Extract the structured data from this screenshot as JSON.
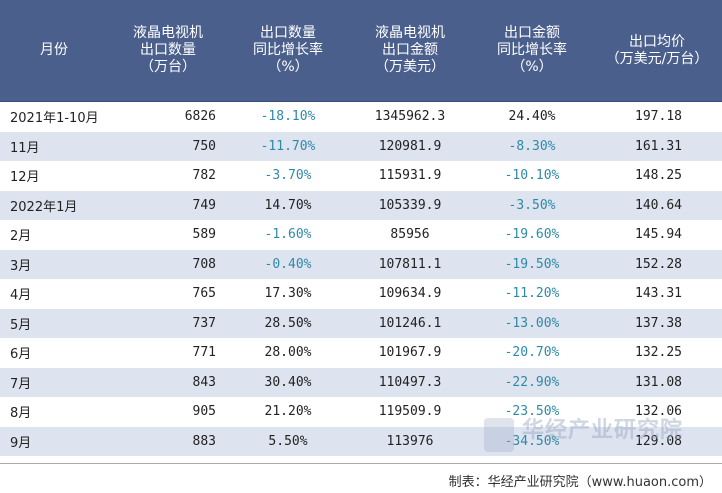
{
  "headers": [
    [
      "月份"
    ],
    [
      "液晶电视机",
      "出口数量",
      "（万台）"
    ],
    [
      "出口数量",
      "同比增长率",
      "（%）"
    ],
    [
      "液晶电视机",
      "出口金额",
      "（万美元）"
    ],
    [
      "出口金额",
      "同比增长率",
      "（%）"
    ],
    [
      "出口均价",
      "（万美元/万台）"
    ]
  ],
  "rows": [
    [
      "2021年1-10月",
      "6826",
      "-18.10%",
      "1345962.3",
      "24.40%",
      "197.18"
    ],
    [
      "11月",
      "750",
      "-11.70%",
      "120981.9",
      "-8.30%",
      "161.31"
    ],
    [
      "12月",
      "782",
      "-3.70%",
      "115931.9",
      "-10.10%",
      "148.25"
    ],
    [
      "2022年1月",
      "749",
      "14.70%",
      "105339.9",
      "-3.50%",
      "140.64"
    ],
    [
      "2月",
      "589",
      "-1.60%",
      "85956",
      "-19.60%",
      "145.94"
    ],
    [
      "3月",
      "708",
      "-0.40%",
      "107811.1",
      "-19.50%",
      "152.28"
    ],
    [
      "4月",
      "765",
      "17.30%",
      "109634.9",
      "-11.20%",
      "143.31"
    ],
    [
      "5月",
      "737",
      "28.50%",
      "101246.1",
      "-13.00%",
      "137.38"
    ],
    [
      "6月",
      "771",
      "28.00%",
      "101967.9",
      "-20.70%",
      "132.25"
    ],
    [
      "7月",
      "843",
      "30.40%",
      "110497.3",
      "-22.90%",
      "131.08"
    ],
    [
      "8月",
      "905",
      "21.20%",
      "119509.9",
      "-23.50%",
      "132.06"
    ],
    [
      "9月",
      "883",
      "5.50%",
      "113976",
      "-34.50%",
      "129.08"
    ]
  ],
  "watermark": "华经产业研究院",
  "footer": "制表：华经产业研究院（www.huaon.com）",
  "colors": {
    "header_bg": "#4a5f8c",
    "stripe": "#dde3ef",
    "negative": "#2f8aa7"
  }
}
